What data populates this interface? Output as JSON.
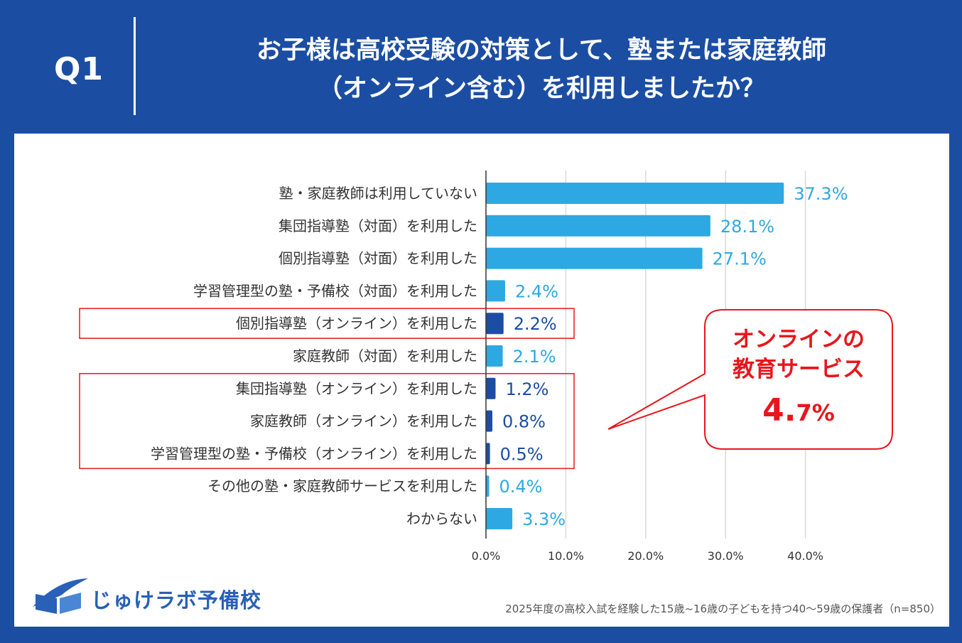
{
  "header": {
    "question_label": "Q1",
    "title_line1": "お子様は高校受験の対策として、塾または家庭教師",
    "title_line2": "（オンライン含む）を利用しましたか？"
  },
  "colors": {
    "header_bg": "#1b4ea3",
    "bar_in_person": "#2ea8e2",
    "bar_online": "#1b4ea3",
    "highlight": "#e8161b"
  },
  "chart_data": {
    "type": "bar",
    "orientation": "horizontal",
    "categories": [
      "塾・家庭教師は利用していない",
      "集団指導塾（対面）を利用した",
      "個別指導塾（対面）を利用した",
      "学習管理型の塾・予備校（対面）を利用した",
      "個別指導塾（オンライン）を利用した",
      "家庭教師（対面）を利用した",
      "集団指導塾（オンライン）を利用した",
      "家庭教師（オンライン）を利用した",
      "学習管理型の塾・予備校（オンライン）を利用した",
      "その他の塾・家庭教師サービスを利用した",
      "わからない"
    ],
    "values": [
      37.3,
      28.1,
      27.1,
      2.4,
      2.2,
      2.1,
      1.2,
      0.8,
      0.5,
      0.4,
      3.3
    ],
    "value_labels": [
      "37.3%",
      "28.1%",
      "27.1%",
      "2.4%",
      "2.2%",
      "2.1%",
      "1.2%",
      "0.8%",
      "0.5%",
      "0.4%",
      "3.3%"
    ],
    "online": [
      false,
      false,
      false,
      false,
      true,
      false,
      true,
      true,
      true,
      false,
      false
    ],
    "xlim": [
      0,
      45
    ],
    "xticks": [
      0,
      10,
      20,
      30,
      40
    ],
    "xtick_labels": [
      "0.0%",
      "10.0%",
      "20.0%",
      "30.0%",
      "40.0%"
    ],
    "grid": true,
    "highlighted_groups": [
      [
        4
      ],
      [
        6,
        7,
        8
      ]
    ],
    "callout": {
      "line1": "オンラインの",
      "line2": "教育サービス",
      "value_int": "4.",
      "value_dec": "7%"
    }
  },
  "logo": {
    "text": "じゅけラボ予備校"
  },
  "footnote": "2025年度の高校入試を経験した15歳~16歳の子どもを持つ40～59歳の保護者（n=850）"
}
